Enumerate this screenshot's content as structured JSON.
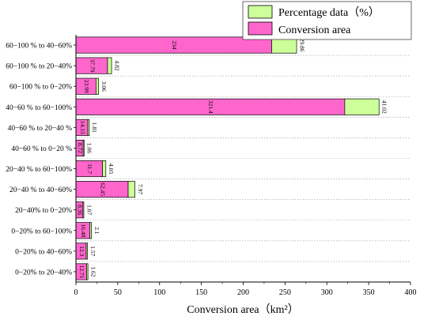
{
  "chart_data": {
    "type": "bar",
    "orientation": "horizontal",
    "stacked": true,
    "xlabel": "Conversion area（km²）",
    "ylabel": "",
    "xlim": [
      0,
      400
    ],
    "xticks": [
      0,
      50,
      100,
      150,
      200,
      250,
      300,
      350,
      400
    ],
    "grid": "dotted horizontal lines",
    "legend_position": "top-right",
    "categories": [
      "60−100 % to 40−60%",
      "60−100 % to 20−40%",
      "60−100 % to 0−20%",
      "40−60 % to 60−100%",
      "40−60 % to 20−40 %",
      "40−60 % to 0−20 %",
      "20−40 % to 60−100%",
      "20−40 % to 40−60%",
      "20−40% to 0−20%",
      "0−20% to 60−100%",
      "0−20% to 40−60%",
      "0−20% to 20−40%"
    ],
    "series": [
      {
        "name": "Conversion area",
        "color": "#ff66cc",
        "values": [
          234,
          37.79,
          23.99,
          321.4,
          14.15,
          8.72,
          31.7,
          62.45,
          8.36,
          16.48,
          12.3,
          12.71
        ],
        "labels": [
          "234",
          "37.79",
          "23.99",
          "321.4",
          "14.15",
          "8.72",
          "31.7",
          "62.45",
          "8.36",
          "16.48",
          "12.3",
          "12.71"
        ]
      },
      {
        "name": "Percentage data（%）",
        "color": "#ccff99",
        "values": [
          29.86,
          4.82,
          3.06,
          41.02,
          1.81,
          1.06,
          4.05,
          7.97,
          1.07,
          2.1,
          1.57,
          1.62
        ],
        "labels": [
          "29.86",
          "4.82",
          "3.06",
          "41.02",
          "1.81",
          "1.06",
          "4.05",
          "7.97",
          "1.07",
          "2.1",
          "1.57",
          "1.62"
        ]
      }
    ]
  }
}
